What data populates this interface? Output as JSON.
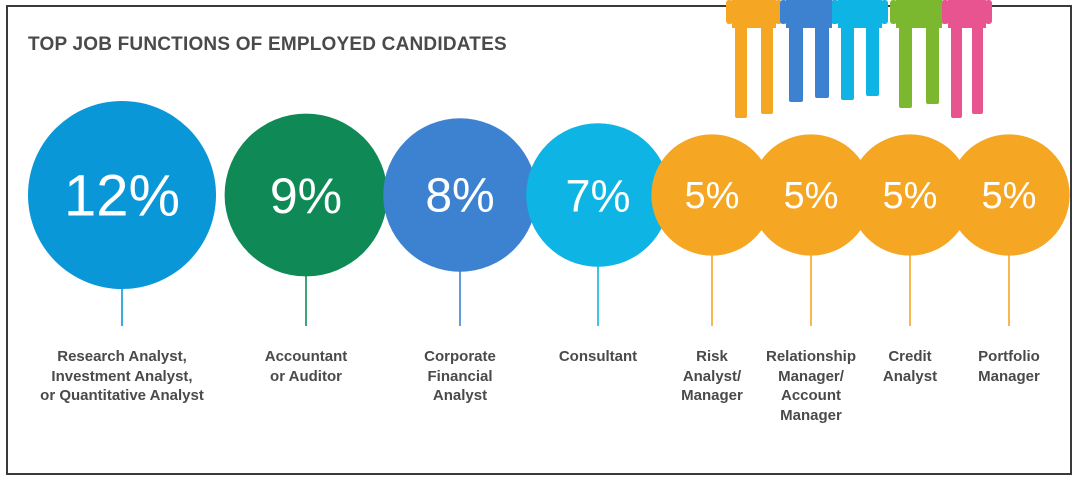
{
  "chart_data": {
    "type": "bubble",
    "title": "TOP JOB FUNCTIONS OF EMPLOYED CANDIDATES",
    "unit": "%",
    "categories": [
      [
        "Research Analyst,",
        "Investment Analyst,",
        "or Quantitative Analyst"
      ],
      [
        "Accountant",
        "or Auditor"
      ],
      [
        "Corporate",
        "Financial",
        "Analyst"
      ],
      [
        "Consultant"
      ],
      [
        "Risk",
        "Analyst/",
        "Manager"
      ],
      [
        "Relationship",
        "Manager/",
        "Account",
        "Manager"
      ],
      [
        "Credit",
        "Analyst"
      ],
      [
        "Portfolio",
        "Manager"
      ]
    ],
    "values": [
      12,
      9,
      8,
      7,
      5,
      5,
      5,
      5
    ],
    "value_labels": [
      "12%",
      "9%",
      "8%",
      "7%",
      "5%",
      "5%",
      "5%",
      "5%"
    ],
    "colors": [
      "#0a97d8",
      "#0f8a57",
      "#3d82d1",
      "#0db4e4",
      "#f5a623",
      "#f5a623",
      "#f5a623",
      "#f5a623"
    ]
  },
  "illustration": {
    "name": "people-figures-illustration",
    "colors": [
      "#f5a623",
      "#3d82d1",
      "#0db4e4",
      "#7cb82f",
      "#e8548f"
    ]
  }
}
